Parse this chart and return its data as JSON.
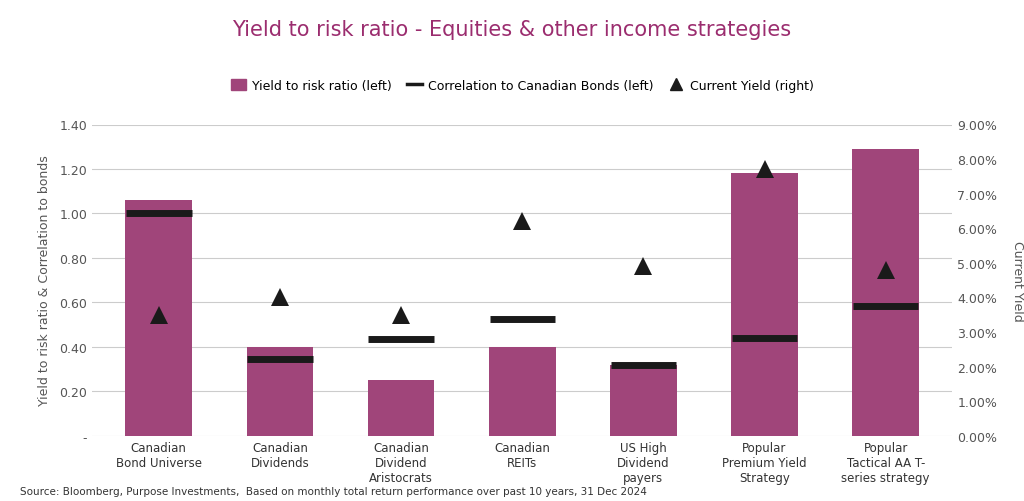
{
  "title": "Yield to risk ratio - Equities & other income strategies",
  "title_color": "#9B2D6F",
  "categories": [
    "Canadian\nBond Universe",
    "Canadian\nDividends",
    "Canadian\nDividend\nAristocrats",
    "Canadian\nREITs",
    "US High\nDividend\npayers",
    "Popular\nPremium Yield\nStrategy",
    "Popular\nTactical AA T-\nseries strategy"
  ],
  "bar_values": [
    1.06,
    0.4,
    0.25,
    0.4,
    0.32,
    1.18,
    1.29
  ],
  "bar_color": "#A0457A",
  "correlation_values": [
    1.0,
    0.345,
    0.435,
    0.525,
    0.32,
    0.44,
    0.585
  ],
  "correlation_color": "#1a1a1a",
  "current_yield_pct": [
    0.035,
    0.04,
    0.035,
    0.062,
    0.049,
    0.077,
    0.048
  ],
  "yield_color": "#1a1a1a",
  "left_ylim": [
    0,
    1.4
  ],
  "left_yticks": [
    0,
    0.2,
    0.4,
    0.6,
    0.8,
    1.0,
    1.2,
    1.4
  ],
  "left_ytick_labels": [
    "-",
    "0.20",
    "0.40",
    "0.60",
    "0.80",
    "1.00",
    "1.20",
    "1.40"
  ],
  "right_ylim": [
    0,
    0.09
  ],
  "right_yticks": [
    0,
    0.01,
    0.02,
    0.03,
    0.04,
    0.05,
    0.06,
    0.07,
    0.08,
    0.09
  ],
  "right_ytick_labels": [
    "0.00%",
    "1.00%",
    "2.00%",
    "3.00%",
    "4.00%",
    "5.00%",
    "6.00%",
    "7.00%",
    "8.00%",
    "9.00%"
  ],
  "ylabel_left": "Yield to risk ratio & Correlation to bonds",
  "ylabel_right": "Current Yield",
  "legend_labels": [
    "Yield to risk ratio (left)",
    "Correlation to Canadian Bonds (left)",
    "Current Yield (right)"
  ],
  "source_text": "Source: Bloomberg, Purpose Investments,  Based on monthly total return performance over past 10 years, 31 Dec 2024",
  "background_color": "#ffffff",
  "grid_color": "#cccccc"
}
